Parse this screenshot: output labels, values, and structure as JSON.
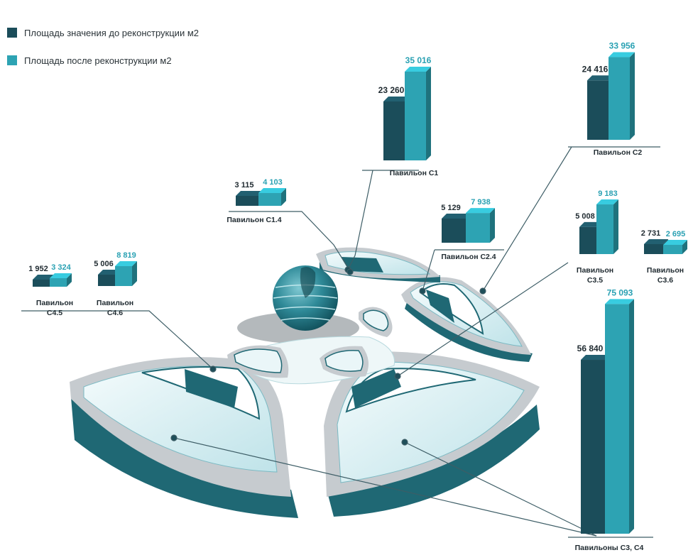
{
  "legend": {
    "before_label": "Площадь значения до реконструкции м2",
    "after_label": "Площадь после реконструкции м2"
  },
  "colors": {
    "before": "#1b4d5a",
    "after": "#2da3b3",
    "before_text": "#1f2a30",
    "after_text": "#2aa1b3",
    "structure": "#8fd0da"
  },
  "chart_data": {
    "type": "bar",
    "title": "",
    "xlabel": "",
    "ylabel": "",
    "series": [
      {
        "name": "Площадь значения до реконструкции м2",
        "values": [
          23260,
          24416,
          3115,
          5129,
          5008,
          2731,
          1952,
          5006,
          56840
        ]
      },
      {
        "name": "Площадь после реконструкции м2",
        "values": [
          35016,
          33956,
          4103,
          7938,
          9183,
          2695,
          3324,
          8819,
          75093
        ]
      }
    ],
    "categories": [
      "Павильон С1",
      "Павильон С2",
      "Павильон С1.4",
      "Павильон С2.4",
      "Павильон С3.5",
      "Павильон С3.6",
      "Павильон С4.5",
      "Павильон С4.6",
      "Павильоны С3, С4"
    ],
    "value_labels": {
      "before": [
        "23 260",
        "24 416",
        "3 115",
        "5 129",
        "5 008",
        "2 731",
        "1 952",
        "5 006",
        "56 840"
      ],
      "after": [
        "35 016",
        "33 956",
        "4 103",
        "7 938",
        "9 183",
        "2 695",
        "3 324",
        "8 819",
        "75 093"
      ]
    },
    "category_labels": [
      [
        "Павильон С1"
      ],
      [
        "Павильон С2"
      ],
      [
        "Павильон С1.4"
      ],
      [
        "Павильон С2.4"
      ],
      [
        "Павильон",
        "С3.5"
      ],
      [
        "Павильон",
        "С3.6"
      ],
      [
        "Павильон",
        "С4.5"
      ],
      [
        "Павильон",
        "С4.6"
      ],
      [
        "Павильоны С3, С4"
      ]
    ]
  }
}
